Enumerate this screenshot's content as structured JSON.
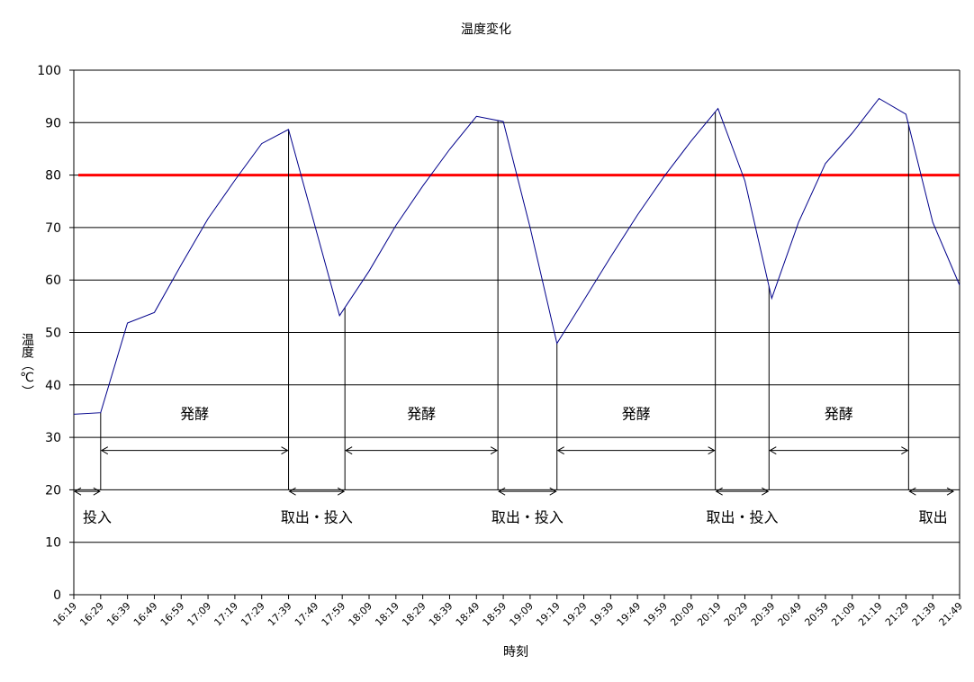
{
  "chart_data": {
    "type": "line",
    "title": "温度変化",
    "xlabel": "時刻",
    "ylabel": "温度（℃）",
    "ylim": [
      0,
      100
    ],
    "yticks": [
      0,
      10,
      20,
      30,
      40,
      50,
      60,
      70,
      80,
      90,
      100
    ],
    "grid": true,
    "legend": "none",
    "categories": [
      "16:19",
      "16:29",
      "16:39",
      "16:49",
      "16:59",
      "17:09",
      "17:19",
      "17:29",
      "17:39",
      "17:49",
      "17:59",
      "18:09",
      "18:19",
      "18:29",
      "18:39",
      "18:49",
      "18:59",
      "19:09",
      "19:19",
      "19:29",
      "19:39",
      "19:49",
      "19:59",
      "20:09",
      "20:19",
      "20:29",
      "20:39",
      "20:49",
      "20:59",
      "21:09",
      "21:19",
      "21:29",
      "21:39",
      "21:49"
    ],
    "series": [
      {
        "color": "#00008b",
        "points": [
          {
            "t": "16:19",
            "y": 34.4
          },
          {
            "t": "16:29",
            "y": 34.7
          },
          {
            "t": "16:39",
            "y": 51.8
          },
          {
            "t": "16:49",
            "y": 53.8
          },
          {
            "t": "16:59",
            "y": 62.9
          },
          {
            "t": "17:09",
            "y": 71.7
          },
          {
            "t": "17:19",
            "y": 79.0
          },
          {
            "t": "17:29",
            "y": 86.0
          },
          {
            "t": "17:39",
            "y": 88.7
          },
          {
            "t": "17:58",
            "y": 53.2
          },
          {
            "t": "18:09",
            "y": 61.7
          },
          {
            "t": "18:19",
            "y": 70.4
          },
          {
            "t": "18:29",
            "y": 77.9
          },
          {
            "t": "18:39",
            "y": 84.9
          },
          {
            "t": "18:49",
            "y": 91.2
          },
          {
            "t": "18:59",
            "y": 90.2
          },
          {
            "t": "19:09",
            "y": 70.0
          },
          {
            "t": "19:19",
            "y": 47.9
          },
          {
            "t": "19:29",
            "y": 56.1
          },
          {
            "t": "19:39",
            "y": 64.4
          },
          {
            "t": "19:49",
            "y": 72.4
          },
          {
            "t": "19:59",
            "y": 79.8
          },
          {
            "t": "20:09",
            "y": 86.5
          },
          {
            "t": "20:19",
            "y": 92.7
          },
          {
            "t": "20:29",
            "y": 78.9
          },
          {
            "t": "20:39",
            "y": 56.5
          },
          {
            "t": "20:49",
            "y": 71.0
          },
          {
            "t": "20:59",
            "y": 82.2
          },
          {
            "t": "21:09",
            "y": 88.0
          },
          {
            "t": "21:19",
            "y": 94.6
          },
          {
            "t": "21:29",
            "y": 91.6
          },
          {
            "t": "21:39",
            "y": 71.0
          },
          {
            "t": "21:49",
            "y": 59.0
          }
        ]
      }
    ],
    "reference_line": {
      "y": 80,
      "color": "#ff0000"
    },
    "markers": [
      "16:29",
      "17:39",
      "18:00",
      "18:57",
      "19:19",
      "20:18",
      "20:38",
      "21:30"
    ],
    "annotations": {
      "phases": [
        {
          "label": "発酵",
          "from": "16:29",
          "to": "17:39"
        },
        {
          "label": "発酵",
          "from": "18:00",
          "to": "18:57"
        },
        {
          "label": "発酵",
          "from": "19:19",
          "to": "20:18"
        },
        {
          "label": "発酵",
          "from": "20:38",
          "to": "21:30"
        }
      ],
      "transfers": [
        {
          "label": "投入",
          "from": "16:19",
          "to": "16:29"
        },
        {
          "label": "取出・投入",
          "from": "17:39",
          "to": "18:00"
        },
        {
          "label": "取出・投入",
          "from": "18:57",
          "to": "19:19"
        },
        {
          "label": "取出・投入",
          "from": "20:18",
          "to": "20:38"
        },
        {
          "label": "取出",
          "from": "21:30",
          "to": "21:47"
        }
      ]
    }
  }
}
